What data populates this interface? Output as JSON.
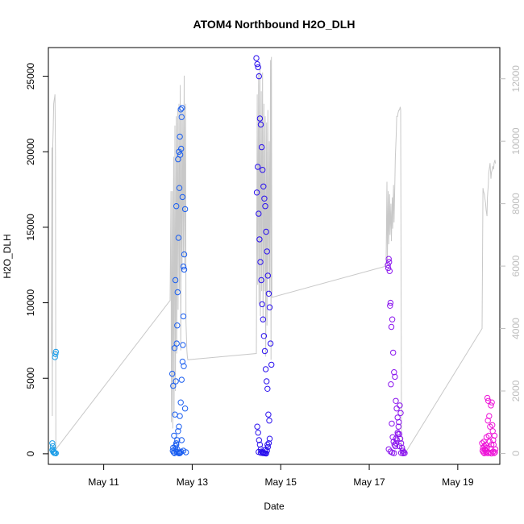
{
  "chart_data": {
    "type": "scatter",
    "title": "ATOM4 Northbound H2O_DLH",
    "xlabel": "Date",
    "ylabel": "H2O_DLH",
    "x_unit": "date (May, day of month)",
    "xlim": [
      9.75,
      19.95
    ],
    "ylim": [
      -700,
      26900
    ],
    "x_ticks": [
      11,
      13,
      15,
      17,
      19
    ],
    "x_tick_labels": [
      "May 11",
      "May 13",
      "May 15",
      "May 17",
      "May 19"
    ],
    "y_ticks": [
      0,
      5000,
      10000,
      15000,
      20000,
      25000
    ],
    "y_tick_labels": [
      "0",
      "5000",
      "10000",
      "15000",
      "20000",
      "25000"
    ],
    "y2_ticks": [
      0,
      2000,
      4000,
      6000,
      8000,
      10000,
      12000
    ],
    "y2_tick_labels": [
      "0",
      "2000",
      "4000",
      "6000",
      "8000",
      "10000",
      "12000"
    ],
    "y2lim": [
      -350,
      13000
    ],
    "y2_color": "#bdbdbd",
    "grid": false,
    "legend": "none",
    "colors": {
      "line": "#c8c8c8",
      "frame": "#000000",
      "flight1": "#1e9ee8",
      "flight2": "#1a5ef0",
      "flight3": "#2a10ee",
      "flight4": "#8a14ee",
      "flight5": "#ee14d8"
    },
    "scatter_groups": [
      {
        "color": "flight1",
        "x": [
          9.84,
          9.85,
          9.86,
          9.87,
          9.88,
          9.9,
          9.92,
          9.84,
          9.86,
          9.89,
          9.9,
          9.91,
          9.92
        ],
        "y": [
          700,
          500,
          300,
          150,
          60,
          40,
          30,
          250,
          120,
          60,
          6400,
          6600,
          6750
        ]
      },
      {
        "color": "flight2",
        "x": [
          12.55,
          12.57,
          12.6,
          12.62,
          12.64,
          12.66,
          12.68,
          12.7,
          12.72,
          12.74,
          12.76,
          12.78,
          12.8,
          12.82,
          12.84,
          12.86,
          12.57,
          12.59,
          12.61,
          12.63,
          12.65,
          12.67,
          12.69,
          12.71,
          12.73,
          12.75,
          12.77,
          12.79,
          12.81,
          12.56,
          12.58,
          12.6,
          12.62,
          12.64,
          12.66,
          12.68,
          12.7,
          12.72,
          12.74,
          12.76,
          12.78,
          12.8,
          12.82,
          12.84,
          12.6,
          12.65,
          12.7,
          12.73,
          12.75,
          12.62,
          12.64,
          12.66,
          12.68,
          12.7,
          12.72,
          12.76,
          12.8
        ],
        "y": [
          5300,
          4500,
          7000,
          11500,
          16400,
          8500,
          19500,
          20000,
          21000,
          22800,
          22300,
          17000,
          12400,
          12200,
          3000,
          100,
          400,
          1200,
          2600,
          4800,
          7300,
          10700,
          14300,
          17600,
          19800,
          20200,
          22900,
          7200,
          5800,
          200,
          100,
          50,
          300,
          600,
          900,
          1500,
          1800,
          2500,
          3400,
          4900,
          6100,
          9100,
          13200,
          16200,
          50,
          120,
          30,
          80,
          140,
          500,
          700,
          300,
          100,
          60,
          40,
          900,
          200
        ]
      },
      {
        "color": "flight3",
        "x": [
          14.45,
          14.47,
          14.49,
          14.51,
          14.53,
          14.55,
          14.57,
          14.59,
          14.61,
          14.63,
          14.65,
          14.67,
          14.69,
          14.71,
          14.73,
          14.75,
          14.77,
          14.79,
          14.46,
          14.48,
          14.5,
          14.52,
          14.54,
          14.56,
          14.58,
          14.6,
          14.62,
          14.64,
          14.66,
          14.68,
          14.7,
          14.72,
          14.74,
          14.47,
          14.49,
          14.51,
          14.53,
          14.55,
          14.57,
          14.59,
          14.61,
          14.63,
          14.65,
          14.67,
          14.69,
          14.71,
          14.73,
          14.5,
          14.55,
          14.6,
          14.65,
          14.7,
          14.75
        ],
        "y": [
          26200,
          25800,
          25600,
          25000,
          22200,
          21800,
          20300,
          18800,
          17700,
          16900,
          16400,
          14700,
          13400,
          11800,
          10600,
          9700,
          7300,
          5900,
          17300,
          19000,
          15900,
          14200,
          12700,
          11500,
          9900,
          8900,
          7800,
          6800,
          5600,
          4800,
          4300,
          2600,
          2200,
          1800,
          1400,
          900,
          600,
          300,
          150,
          100,
          80,
          50,
          30,
          20,
          200,
          450,
          700,
          120,
          60,
          40,
          250,
          600,
          1000
        ]
      },
      {
        "color": "flight4",
        "x": [
          17.42,
          17.44,
          17.46,
          17.48,
          17.5,
          17.52,
          17.54,
          17.56,
          17.58,
          17.6,
          17.62,
          17.64,
          17.66,
          17.68,
          17.7,
          17.72,
          17.74,
          17.76,
          17.78,
          17.8,
          17.43,
          17.45,
          17.47,
          17.49,
          17.51,
          17.53,
          17.55,
          17.57,
          17.59,
          17.61,
          17.63,
          17.65,
          17.67,
          17.69,
          17.71,
          17.44,
          17.48,
          17.52,
          17.56,
          17.6,
          17.64,
          17.68,
          17.72,
          17.76
        ],
        "y": [
          12500,
          12900,
          12100,
          10000,
          8400,
          8900,
          6700,
          5400,
          5100,
          3500,
          3000,
          2400,
          1800,
          1300,
          1000,
          700,
          400,
          200,
          100,
          50,
          12300,
          12700,
          9800,
          4600,
          2000,
          1100,
          800,
          600,
          500,
          700,
          900,
          1300,
          2100,
          3200,
          2700,
          300,
          150,
          80,
          40,
          1000,
          1400,
          500,
          60,
          30
        ]
      },
      {
        "color": "flight5",
        "x": [
          19.55,
          19.57,
          19.59,
          19.61,
          19.63,
          19.65,
          19.67,
          19.69,
          19.71,
          19.73,
          19.75,
          19.77,
          19.79,
          19.81,
          19.83,
          19.85,
          19.56,
          19.58,
          19.6,
          19.62,
          19.64,
          19.66,
          19.68,
          19.7,
          19.72,
          19.74,
          19.76,
          19.78,
          19.8,
          19.82,
          19.84,
          19.6,
          19.64,
          19.68,
          19.72,
          19.76,
          19.8
        ],
        "y": [
          700,
          400,
          800,
          300,
          600,
          1100,
          3700,
          3500,
          2500,
          1800,
          3200,
          3400,
          1500,
          600,
          1200,
          300,
          200,
          100,
          500,
          250,
          150,
          400,
          2200,
          1200,
          800,
          350,
          600,
          1900,
          900,
          50,
          100,
          30,
          60,
          40,
          80,
          20,
          150
        ]
      }
    ],
    "gray_line": {
      "axis": "y2",
      "x": [
        9.82,
        9.83,
        9.84,
        9.85,
        9.86,
        9.87,
        9.88,
        9.89,
        9.9,
        9.91,
        9.92,
        9.93,
        12.5,
        12.52,
        12.53,
        12.55,
        12.56,
        12.58,
        12.59,
        12.61,
        12.62,
        12.64,
        12.65,
        12.67,
        12.68,
        12.7,
        12.71,
        12.73,
        12.74,
        12.76,
        12.77,
        12.79,
        12.8,
        12.82,
        12.83,
        12.85,
        12.86,
        12.88,
        12.89,
        12.9,
        14.45,
        14.47,
        14.48,
        14.5,
        14.51,
        14.53,
        14.54,
        14.56,
        14.57,
        14.59,
        14.6,
        14.62,
        14.63,
        14.65,
        14.66,
        14.68,
        14.69,
        14.71,
        14.72,
        14.74,
        14.75,
        14.77,
        14.78,
        14.79,
        14.8,
        17.38,
        17.4,
        17.41,
        17.43,
        17.44,
        17.46,
        17.47,
        17.49,
        17.5,
        17.52,
        17.53,
        17.55,
        17.56,
        17.58,
        17.59,
        17.61,
        17.62,
        17.64,
        17.65,
        17.67,
        17.68,
        17.7,
        17.71,
        17.73,
        17.74,
        17.76,
        17.78,
        17.8,
        17.82,
        19.55,
        19.57,
        19.58,
        19.6,
        19.61,
        19.63,
        19.64,
        19.66,
        19.67,
        19.69,
        19.7,
        19.72,
        19.73,
        19.75,
        19.76,
        19.78,
        19.79,
        19.81,
        19.82,
        19.84,
        19.85,
        19.86
      ],
      "y": [
        3200,
        9800,
        1200,
        9900,
        10400,
        11200,
        11300,
        11400,
        11500,
        9500,
        200,
        150,
        4900,
        8400,
        1000,
        8400,
        800,
        9500,
        1200,
        10500,
        2000,
        10800,
        3200,
        11000,
        4600,
        11200,
        5200,
        11800,
        3300,
        11000,
        5800,
        11000,
        6300,
        12100,
        6000,
        11200,
        4200,
        3300,
        3100,
        3000,
        3200,
        11500,
        5400,
        12200,
        4800,
        12400,
        4400,
        11600,
        5200,
        12200,
        4200,
        11200,
        5200,
        10800,
        3100,
        10600,
        4100,
        11000,
        5600,
        10000,
        5100,
        12600,
        3000,
        12700,
        5000,
        6000,
        8700,
        6200,
        8400,
        6700,
        8300,
        7000,
        8000,
        6800,
        8200,
        7200,
        8600,
        7400,
        8800,
        9500,
        10200,
        10800,
        10800,
        10900,
        11000,
        11000,
        11100,
        11000,
        0,
        0,
        0,
        0,
        50,
        30,
        4000,
        8500,
        8400,
        8300,
        8200,
        8000,
        7800,
        7600,
        8200,
        8600,
        9000,
        9200,
        9300,
        8800,
        9000,
        9100,
        9200,
        9100,
        9300,
        9400,
        9300,
        9300
      ]
    }
  }
}
